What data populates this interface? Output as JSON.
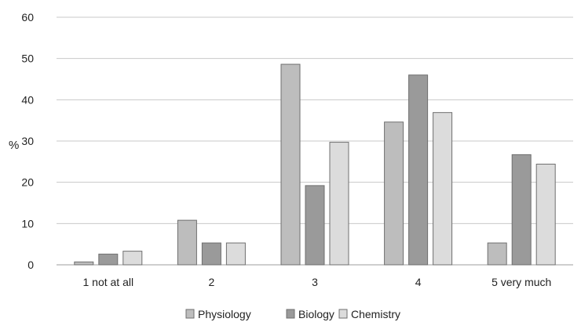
{
  "chart_data": {
    "type": "bar",
    "title": "",
    "xlabel": "",
    "ylabel": "%",
    "ylim": [
      0,
      60
    ],
    "yticks": [
      0,
      10,
      20,
      30,
      40,
      50,
      60
    ],
    "grid": true,
    "legend_position": "bottom",
    "categories": [
      "1 not at all",
      "2",
      "3",
      "4",
      "5 very much"
    ],
    "series": [
      {
        "name": "Physiology",
        "color": "#bdbdbd",
        "values": [
          0.7,
          10.8,
          48.6,
          34.6,
          5.3
        ]
      },
      {
        "name": "Biology",
        "color": "#9a9a9a",
        "values": [
          2.6,
          5.3,
          19.2,
          46.0,
          26.7
        ]
      },
      {
        "name": "Chemistry",
        "color": "#dcdcdc",
        "values": [
          3.3,
          5.3,
          29.7,
          36.9,
          24.4
        ]
      }
    ]
  }
}
